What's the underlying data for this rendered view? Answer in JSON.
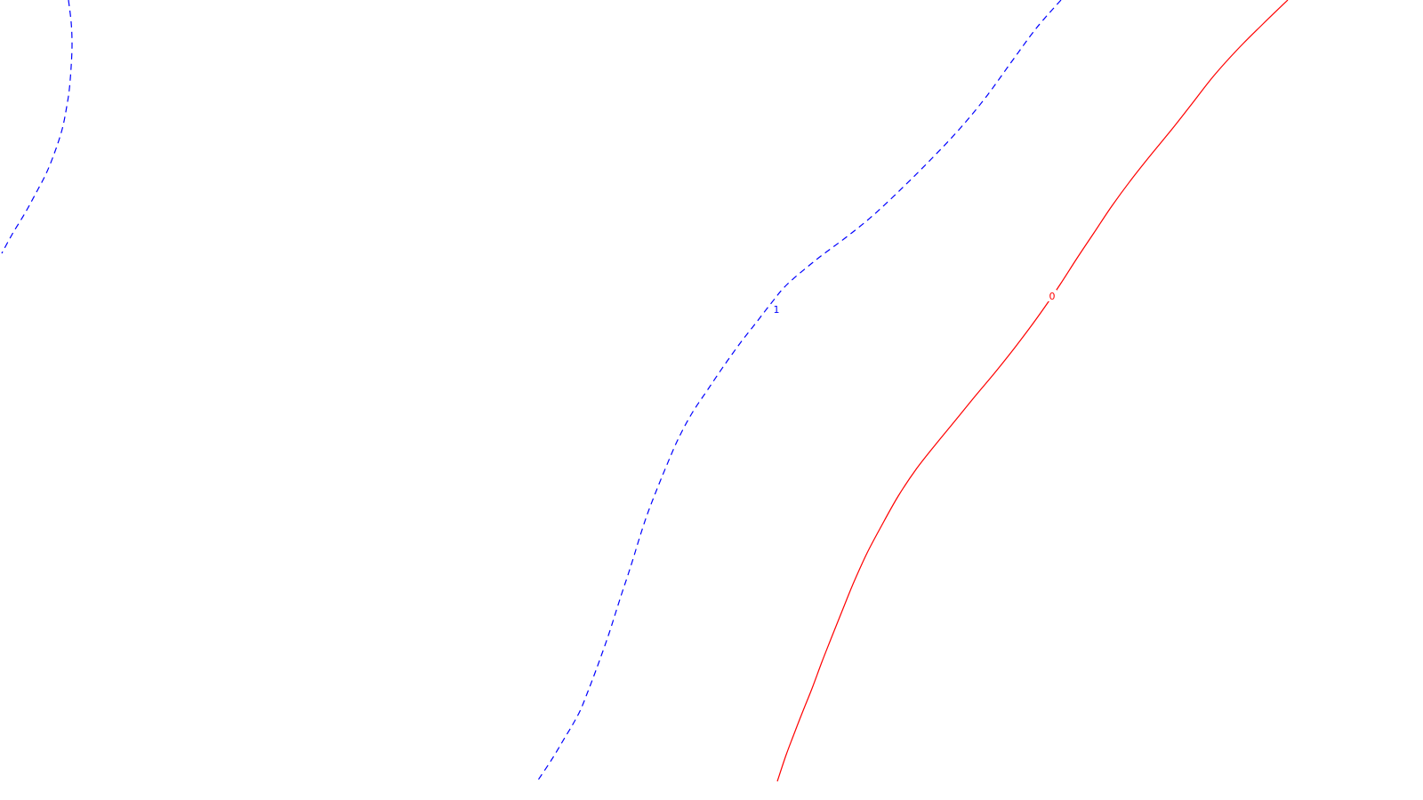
{
  "chart_data": {
    "type": "line",
    "title": "",
    "xlabel": "",
    "ylabel": "",
    "grid": false,
    "legend": "none",
    "colors": {
      "background": "#ffffff",
      "negative": "#0000ff",
      "zero": "#ff0000"
    },
    "series": [
      {
        "label": "1",
        "color": "#0000ff",
        "dashed": true,
        "label_point": [
          873,
          348
        ],
        "x": [
          1193,
          1165,
          1137,
          1108,
          1079,
          1048,
          1016,
          982,
          950,
          918,
          885,
          868,
          851,
          833,
          815,
          796,
          778,
          762,
          749,
          738,
          728,
          720,
          713,
          706,
          699,
          692,
          685,
          677,
          669,
          661,
          653,
          644,
          635,
          620,
          604
        ],
        "y": [
          0,
          32,
          70,
          110,
          145,
          178,
          210,
          242,
          268,
          292,
          320,
          340,
          362,
          385,
          410,
          438,
          465,
          495,
          525,
          552,
          578,
          602,
          625,
          647,
          668,
          690,
          712,
          735,
          757,
          778,
          798,
          815,
          830,
          855,
          879
        ]
      },
      {
        "label": "",
        "color": "#0000ff",
        "dashed": true,
        "x": [
          77,
          80,
          81,
          80,
          78,
          75,
          70,
          62,
          52,
          40,
          28,
          14,
          2
        ],
        "y": [
          0,
          25,
          50,
          75,
          100,
          120,
          145,
          170,
          195,
          218,
          240,
          263,
          285
        ]
      },
      {
        "label": "0",
        "color": "#ff0000",
        "dashed": false,
        "label_point": [
          1183,
          333
        ],
        "x": [
          1448,
          1420,
          1392,
          1365,
          1340,
          1318,
          1295,
          1272,
          1250,
          1230,
          1210,
          1192,
          1175,
          1157,
          1138,
          1118,
          1097,
          1075,
          1052,
          1030,
          1010,
          992,
          975,
          960,
          947,
          935,
          924,
          914,
          904,
          895,
          884,
          874
        ],
        "y": [
          0,
          27,
          55,
          85,
          117,
          145,
          173,
          202,
          232,
          262,
          292,
          320,
          345,
          370,
          395,
          420,
          445,
          472,
          500,
          528,
          558,
          590,
          622,
          655,
          687,
          717,
          745,
          772,
          797,
          820,
          849,
          879
        ]
      }
    ]
  }
}
